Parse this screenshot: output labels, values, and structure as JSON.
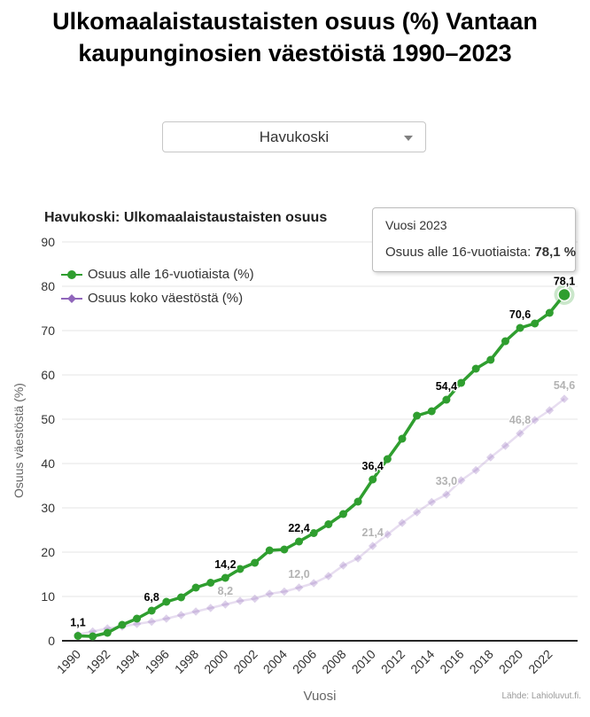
{
  "header": {
    "title": "Ulkomaalaistaustaisten osuus (%) Vantaan kaupunginosien väestöistä 1990–2023"
  },
  "selector": {
    "value": "Havukoski"
  },
  "tooltip": {
    "line1": "Vuosi 2023",
    "label": "Osuus alle 16-vuotiaista: ",
    "value": "78,1 %"
  },
  "source": "Lähde: Lahioluvut.fi.",
  "colors": {
    "green": "#2f9e2f",
    "purple": "#9066bb",
    "grid": "#e6e6e6",
    "axis": "#262626",
    "tick_text": "#333333",
    "faded_label": "#b3b3b3",
    "data_label": "#000000"
  },
  "chart_data": {
    "type": "line",
    "title": "Havukoski: Ulkomaalaistaustaisten osuus",
    "xlabel": "Vuosi",
    "ylabel": "Osuus väestöstä (%)",
    "ylim": [
      0,
      90
    ],
    "ytick_step": 10,
    "grid": true,
    "legend_position": "top-left-inside",
    "x": [
      1990,
      1991,
      1992,
      1993,
      1994,
      1995,
      1996,
      1997,
      1998,
      1999,
      2000,
      2001,
      2002,
      2003,
      2004,
      2005,
      2006,
      2007,
      2008,
      2009,
      2010,
      2011,
      2012,
      2013,
      2014,
      2015,
      2016,
      2017,
      2018,
      2019,
      2020,
      2021,
      2022,
      2023
    ],
    "xticks": [
      1990,
      1992,
      1994,
      1996,
      1998,
      2000,
      2002,
      2004,
      2006,
      2008,
      2010,
      2012,
      2014,
      2016,
      2018,
      2020,
      2022
    ],
    "series": [
      {
        "name": "Osuus alle 16-vuotiaista (%)",
        "color": "#2f9e2f",
        "marker": "circle",
        "dimmed": false,
        "values": [
          1.1,
          1.0,
          1.8,
          3.6,
          5.0,
          6.8,
          8.8,
          9.8,
          12.0,
          13.1,
          14.2,
          16.2,
          17.6,
          20.4,
          20.6,
          22.4,
          24.3,
          26.3,
          28.6,
          31.4,
          36.4,
          41.0,
          45.6,
          50.8,
          51.8,
          54.4,
          58.2,
          61.4,
          63.4,
          67.6,
          70.6,
          71.6,
          74.0,
          78.1
        ],
        "labels": {
          "1990": "1,1",
          "1995": "6,8",
          "2000": "14,2",
          "2005": "22,4",
          "2010": "36,4",
          "2015": "54,4",
          "2020": "70,6",
          "2023": "78,1"
        }
      },
      {
        "name": "Osuus koko väestöstä (%)",
        "color": "#9066bb",
        "marker": "diamond",
        "dimmed": true,
        "values": [
          1.4,
          2.1,
          2.8,
          3.2,
          3.8,
          4.3,
          5.0,
          5.8,
          6.6,
          7.4,
          8.2,
          9.0,
          9.5,
          10.6,
          11.1,
          12.0,
          13.0,
          14.6,
          17.0,
          18.6,
          21.4,
          24.0,
          26.6,
          29.0,
          31.3,
          33.0,
          36.2,
          38.5,
          41.4,
          44.0,
          46.8,
          49.8,
          52.0,
          54.6
        ],
        "labels": {
          "2000": "8,2",
          "2005": "12,0",
          "2010": "21,4",
          "2015": "33,0",
          "2020": "46,8",
          "2023": "54,6"
        }
      }
    ],
    "hover": {
      "series": 0,
      "year": 2023,
      "value": 78.1
    }
  }
}
